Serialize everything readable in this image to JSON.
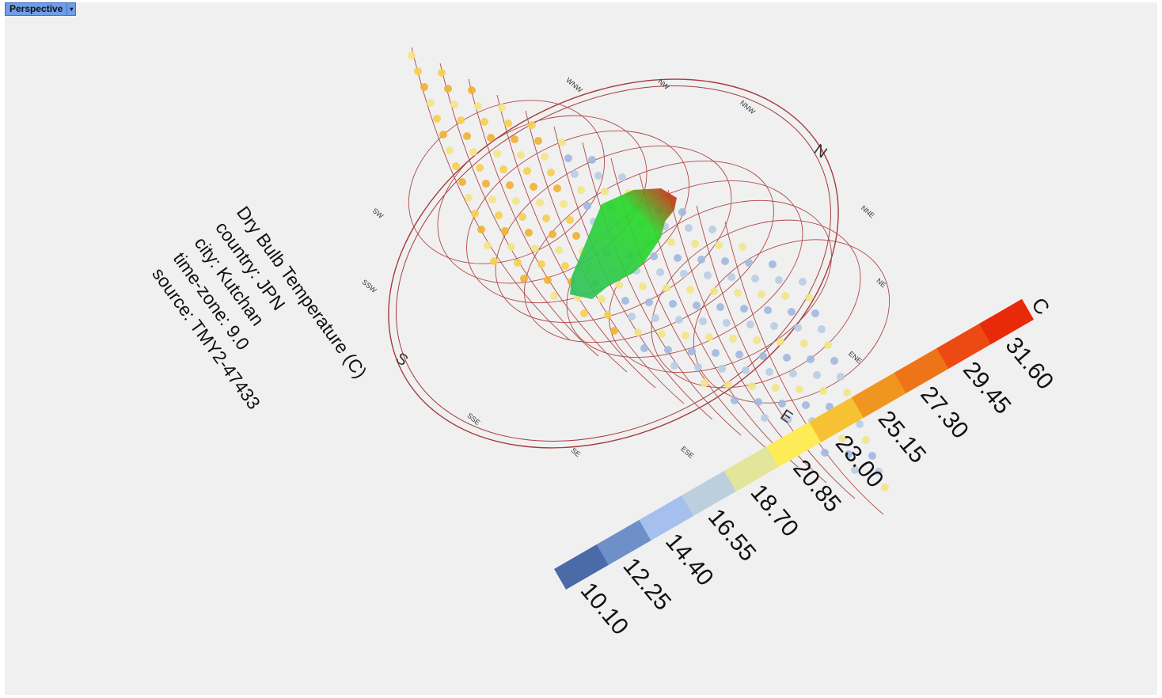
{
  "viewport": {
    "tab": "Perspective"
  },
  "info": {
    "lines": [
      "Dry Bulb Temperature (C)",
      "country: JPN",
      "city: Kutchan",
      "time-zone: 9.0",
      "source: TMY2-47433"
    ]
  },
  "compass": {
    "labels": [
      "N",
      "NNE",
      "NE",
      "ENE",
      "E",
      "ESE",
      "SE",
      "SSE",
      "S",
      "SSW",
      "SW",
      "WNW",
      "NW",
      "NNW"
    ]
  },
  "legend": {
    "unit": "C",
    "labels": [
      "10.10",
      "12.25",
      "14.40",
      "16.55",
      "18.70",
      "20.85",
      "23.00",
      "25.15",
      "27.30",
      "29.45",
      "31.60"
    ]
  }
}
